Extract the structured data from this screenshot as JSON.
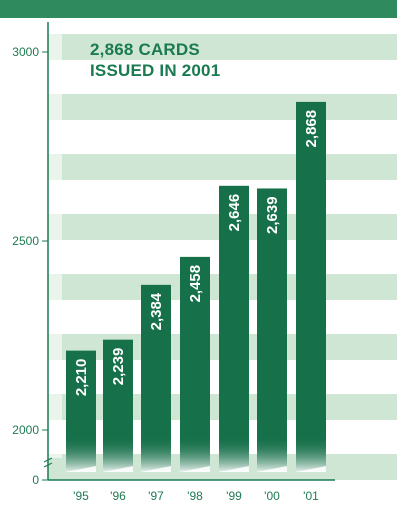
{
  "chart_data": {
    "type": "bar",
    "title_lines": [
      "2,868 CARDS",
      "ISSUED IN 2001"
    ],
    "categories": [
      "'95",
      "'96",
      "'97",
      "'98",
      "'99",
      "'00",
      "'01"
    ],
    "values": [
      2210,
      2239,
      2384,
      2458,
      2646,
      2639,
      2868
    ],
    "value_labels": [
      "2,210",
      "2,239",
      "2,384",
      "2,458",
      "2,646",
      "2,639",
      "2,868"
    ],
    "y_ticks": [
      {
        "value": 0,
        "label": "0"
      },
      {
        "value": 2000,
        "label": "2000"
      },
      {
        "value": 2500,
        "label": "2500"
      },
      {
        "value": 3000,
        "label": "3000"
      }
    ],
    "y_axis_break": true,
    "ylim": [
      1900,
      3030
    ],
    "colors": {
      "bar": "#16704a",
      "stripe": "#cfe6d4",
      "header": "#2f8a5e",
      "text": "#1a7a50"
    }
  }
}
